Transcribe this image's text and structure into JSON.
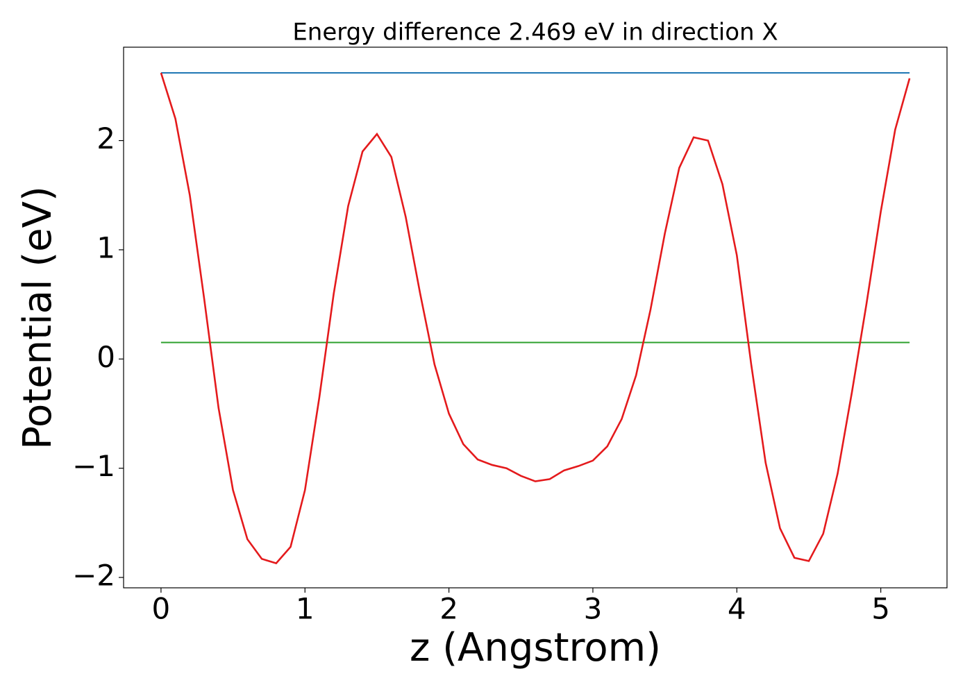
{
  "chart_data": {
    "type": "line",
    "title": "Energy difference 2.469 eV in direction X",
    "xlabel": "z (Angstrom)",
    "ylabel": "Potential (eV)",
    "series": [
      {
        "color": "#e41a1c",
        "x": [
          0,
          0.1,
          0.2,
          0.3,
          0.4,
          0.5,
          0.6,
          0.7,
          0.8,
          0.9,
          1.0,
          1.1,
          1.2,
          1.3,
          1.4,
          1.5,
          1.6,
          1.7,
          1.8,
          1.9,
          2.0,
          2.1,
          2.2,
          2.3,
          2.4,
          2.5,
          2.6,
          2.7,
          2.8,
          2.9,
          3.0,
          3.1,
          3.2,
          3.3,
          3.4,
          3.5,
          3.6,
          3.7,
          3.8,
          3.9,
          4.0,
          4.1,
          4.2,
          4.3,
          4.4,
          4.5,
          4.6,
          4.7,
          4.8,
          4.9,
          5.0,
          5.1,
          5.2
        ],
        "values": [
          2.62,
          2.2,
          1.5,
          0.55,
          -0.45,
          -1.2,
          -1.65,
          -1.83,
          -1.87,
          -1.72,
          -1.2,
          -0.35,
          0.6,
          1.4,
          1.9,
          2.06,
          1.85,
          1.3,
          0.6,
          -0.05,
          -0.5,
          -0.78,
          -0.92,
          -0.97,
          -1.0,
          -1.07,
          -1.12,
          -1.1,
          -1.02,
          -0.98,
          -0.93,
          -0.8,
          -0.55,
          -0.15,
          0.45,
          1.15,
          1.75,
          2.03,
          2.0,
          1.6,
          0.95,
          -0.05,
          -0.95,
          -1.55,
          -1.82,
          -1.85,
          -1.6,
          -1.05,
          -0.3,
          0.5,
          1.35,
          2.1,
          2.57
        ]
      },
      {
        "color": "#1f77b4",
        "x": [
          0,
          5.2
        ],
        "values": [
          2.62,
          2.62
        ]
      },
      {
        "color": "#2ca02c",
        "x": [
          0,
          5.2
        ],
        "values": [
          0.151,
          0.151
        ]
      }
    ],
    "xlim": [
      -0.26,
      5.46
    ],
    "xticks": [
      0,
      1,
      2,
      3,
      4,
      5
    ],
    "ylim": [
      -2.095,
      2.855
    ],
    "yticks": [
      {
        "value": -2,
        "label": "−2"
      },
      {
        "value": -1,
        "label": "−1"
      },
      0,
      1,
      2
    ]
  }
}
